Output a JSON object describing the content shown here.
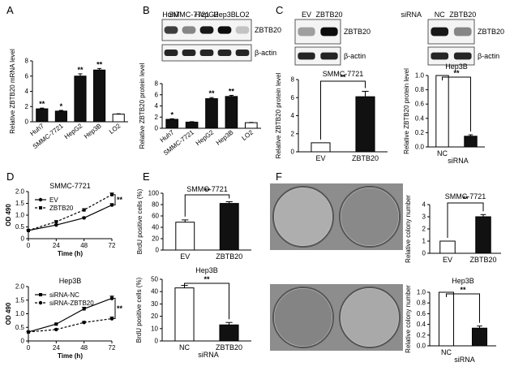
{
  "panels": {
    "A": "A",
    "B": "B",
    "C": "C",
    "D": "D",
    "E": "E",
    "F": "F"
  },
  "chart_data": [
    {
      "id": "A",
      "type": "bar",
      "ylabel": "Relative ZBTB20 mRNA level",
      "ylim": [
        0,
        8
      ],
      "yticks": [
        0,
        2,
        4,
        6,
        8
      ],
      "categories": [
        "Huh7",
        "SMMC-7721",
        "HepG2",
        "Hep3B",
        "LO2"
      ],
      "values": [
        1.7,
        1.4,
        6.0,
        6.8,
        1.0
      ],
      "errors": [
        0.1,
        0.1,
        0.3,
        0.2,
        0.05
      ],
      "sig": [
        "**",
        "*",
        "**",
        "**",
        ""
      ],
      "fills": [
        "#111111",
        "#111111",
        "#111111",
        "#111111",
        "#ffffff"
      ]
    },
    {
      "id": "B",
      "type": "bar",
      "ylabel": "Relative ZBTB20 protein level",
      "ylim": [
        0,
        8
      ],
      "yticks": [
        0,
        2,
        4,
        6,
        8
      ],
      "categories": [
        "Huh7",
        "SMMC-7721",
        "HepG2",
        "Hep3B",
        "LO2"
      ],
      "values": [
        1.6,
        1.1,
        5.3,
        5.7,
        1.0
      ],
      "errors": [
        0.1,
        0.08,
        0.2,
        0.2,
        0.05
      ],
      "sig": [
        "*",
        "",
        "**",
        "**",
        ""
      ],
      "fills": [
        "#111111",
        "#111111",
        "#111111",
        "#111111",
        "#ffffff"
      ]
    },
    {
      "id": "C1",
      "type": "bar",
      "title": "SMMC-7721",
      "ylabel": "Relative ZBTB20 protein level",
      "ylim": [
        0,
        8
      ],
      "yticks": [
        0,
        2,
        4,
        6,
        8
      ],
      "categories": [
        "EV",
        "ZBTB20"
      ],
      "values": [
        1.0,
        6.1
      ],
      "errors": [
        0,
        0.6
      ],
      "sig": "**",
      "fills": [
        "#ffffff",
        "#111111"
      ]
    },
    {
      "id": "C2",
      "type": "bar",
      "title": "Hep3B",
      "ylabel": "Relative ZBTB20 protein level",
      "ylim": [
        0,
        1.0
      ],
      "yticks": [
        0.0,
        0.2,
        0.4,
        0.6,
        0.8,
        1.0
      ],
      "categories": [
        "NC",
        "siRNA"
      ],
      "values": [
        1.0,
        0.15
      ],
      "errors": [
        0,
        0.02
      ],
      "sig": "**",
      "fills": [
        "#ffffff",
        "#111111"
      ],
      "group_label": "siRNA"
    },
    {
      "id": "D1",
      "type": "line",
      "title": "SMMC-7721",
      "xlabel": "Time (h)",
      "ylabel": "OD 490",
      "ylim": [
        0,
        2.0
      ],
      "yticks": [
        0,
        0.5,
        1.0,
        1.5,
        2.0
      ],
      "x": [
        0,
        24,
        48,
        72
      ],
      "sig": "**",
      "series": [
        {
          "name": "EV",
          "values": [
            0.35,
            0.58,
            0.88,
            1.43
          ],
          "errors": [
            0.02,
            0.03,
            0.04,
            0.06
          ],
          "dashed": false,
          "marker": "circle"
        },
        {
          "name": "ZBTB20",
          "values": [
            0.35,
            0.72,
            1.22,
            1.87
          ],
          "errors": [
            0.02,
            0.04,
            0.05,
            0.07
          ],
          "dashed": true,
          "marker": "square"
        }
      ]
    },
    {
      "id": "D2",
      "type": "line",
      "title": "Hep3B",
      "xlabel": "Time (h)",
      "ylabel": "OD 490",
      "ylim": [
        0,
        2.0
      ],
      "yticks": [
        0,
        0.5,
        1.0,
        1.5,
        2.0
      ],
      "x": [
        0,
        24,
        48,
        72
      ],
      "sig": "**",
      "series": [
        {
          "name": "siRNA-NC",
          "values": [
            0.33,
            0.62,
            1.18,
            1.57
          ],
          "errors": [
            0.02,
            0.03,
            0.06,
            0.08
          ],
          "dashed": false,
          "marker": "square"
        },
        {
          "name": "siRNA-ZBTB20",
          "values": [
            0.33,
            0.42,
            0.68,
            0.82
          ],
          "errors": [
            0.02,
            0.03,
            0.04,
            0.06
          ],
          "dashed": true,
          "marker": "circle"
        }
      ]
    },
    {
      "id": "E1",
      "type": "bar",
      "title": "SMMC-7721",
      "ylabel": "BrdU positive cells (%)",
      "ylim": [
        0,
        100
      ],
      "yticks": [
        0,
        20,
        40,
        60,
        80,
        100
      ],
      "categories": [
        "EV",
        "ZBTB20"
      ],
      "values": [
        49,
        82
      ],
      "errors": [
        4,
        3
      ],
      "sig": "**",
      "fills": [
        "#ffffff",
        "#111111"
      ]
    },
    {
      "id": "E2",
      "type": "bar",
      "title": "Hep3B",
      "ylabel": "BrdU positive cells (%)",
      "ylim": [
        0,
        50
      ],
      "yticks": [
        0,
        10,
        20,
        30,
        40,
        50
      ],
      "categories": [
        "NC",
        "ZBTB20"
      ],
      "values": [
        43,
        13
      ],
      "errors": [
        2,
        2
      ],
      "sig": "**",
      "fills": [
        "#ffffff",
        "#111111"
      ],
      "group_label": "siRNA"
    },
    {
      "id": "F1",
      "type": "bar",
      "title": "SMMC-7721",
      "ylabel": "Relative colony number",
      "ylim": [
        0,
        4
      ],
      "yticks": [
        0,
        1,
        2,
        3,
        4
      ],
      "categories": [
        "EV",
        "ZBTB20"
      ],
      "values": [
        1.0,
        3.0
      ],
      "errors": [
        0,
        0.18
      ],
      "sig": "**",
      "fills": [
        "#ffffff",
        "#111111"
      ]
    },
    {
      "id": "F2",
      "type": "bar",
      "title": "Hep3B",
      "ylabel": "Relative colony number",
      "ylim": [
        0,
        1.0
      ],
      "yticks": [
        0.0,
        0.2,
        0.4,
        0.6,
        0.8,
        1.0
      ],
      "categories": [
        "NC",
        "siRNA"
      ],
      "values": [
        1.0,
        0.33
      ],
      "errors": [
        0,
        0.04
      ],
      "sig": "**",
      "fills": [
        "#ffffff",
        "#111111"
      ],
      "group_label": "siRNA"
    }
  ],
  "blots": {
    "B": {
      "lanes": [
        "Huh7",
        "SMMC-7721",
        "HepG2",
        "Hep3B",
        "LO2"
      ],
      "target": "ZBTB20",
      "control": "β-actin",
      "target_intensity": [
        0.75,
        0.45,
        0.9,
        0.95,
        0.2
      ]
    },
    "C1": {
      "lanes": [
        "EV",
        "ZBTB20"
      ],
      "target": "ZBTB20",
      "control": "β-actin",
      "target_intensity": [
        0.35,
        0.95
      ]
    },
    "C2": {
      "lanes": [
        "NC",
        "ZBTB20"
      ],
      "group": "siRNA",
      "target": "ZBTB20",
      "control": "β-actin",
      "target_intensity": [
        0.9,
        0.45
      ]
    }
  },
  "colonies": {
    "rows": [
      {
        "intensity": [
          0.35,
          0.75
        ]
      },
      {
        "intensity": [
          0.8,
          0.4
        ]
      }
    ]
  }
}
